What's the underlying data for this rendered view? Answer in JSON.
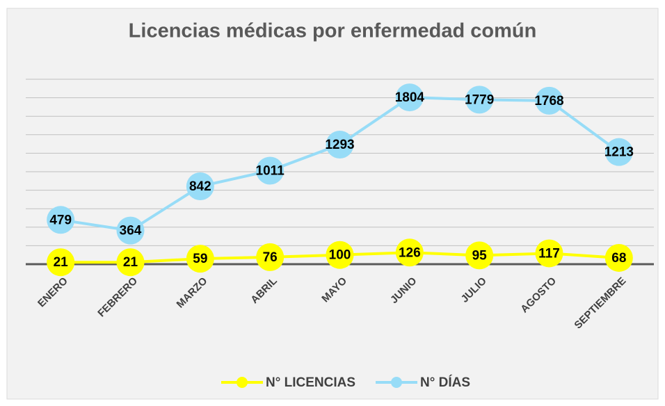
{
  "chart_data": {
    "type": "line",
    "title": "Licencias médicas por enfermedad común",
    "categories": [
      "ENERO",
      "FEBRERO",
      "MARZO",
      "ABRIL",
      "MAYO",
      "JUNIO",
      "JULIO",
      "AGOSTO",
      "SEPTIEMBRE"
    ],
    "series": [
      {
        "name": "N° LICENCIAS",
        "color": "#ffff00",
        "values": [
          21,
          21,
          59,
          76,
          100,
          126,
          95,
          117,
          68
        ]
      },
      {
        "name": "N° DÍAS",
        "color": "#97dcf7",
        "values": [
          479,
          364,
          842,
          1011,
          1293,
          1804,
          1779,
          1768,
          1213
        ]
      }
    ],
    "ylim": [
      0,
      2000
    ],
    "yticks": [
      0,
      200,
      400,
      600,
      800,
      1000,
      1200,
      1400,
      1600,
      1800,
      2000
    ],
    "grid": true,
    "legend": "bottom"
  }
}
